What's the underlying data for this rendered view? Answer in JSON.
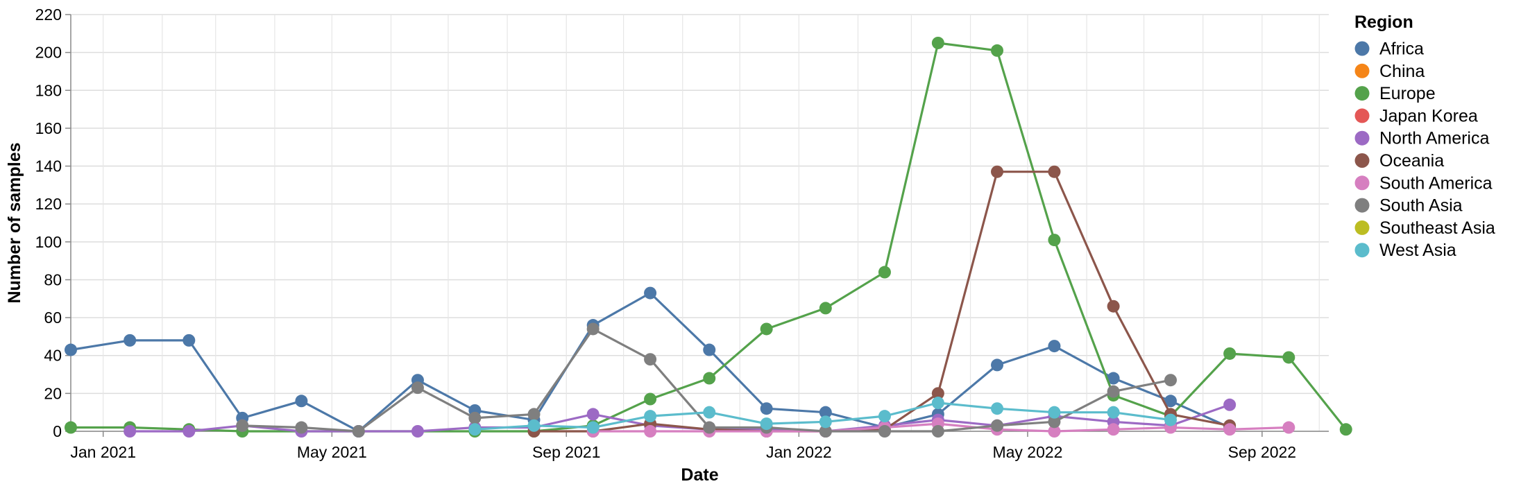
{
  "chart_data": {
    "type": "line",
    "xlabel": "Date",
    "ylabel": "Number of samples",
    "ylim": [
      0,
      220
    ],
    "xlim": [
      "2020-12-15",
      "2022-10-06"
    ],
    "y_ticks": [
      0,
      20,
      40,
      60,
      80,
      100,
      120,
      140,
      160,
      180,
      200,
      220
    ],
    "x_ticks": [
      {
        "label": "Jan 2021",
        "date": "2021-01-01"
      },
      {
        "label": "May 2021",
        "date": "2021-05-01"
      },
      {
        "label": "Sep 2021",
        "date": "2021-09-01"
      },
      {
        "label": "Jan 2022",
        "date": "2022-01-01"
      },
      {
        "label": "May 2022",
        "date": "2022-05-01"
      },
      {
        "label": "Sep 2022",
        "date": "2022-09-01"
      }
    ],
    "grid": true,
    "legend": {
      "title": "Region",
      "position": "right"
    },
    "series": [
      {
        "name": "Africa",
        "color": "#4c78a8",
        "points": [
          [
            "2020-12-15",
            43
          ],
          [
            "2021-01-15",
            48
          ],
          [
            "2021-02-15",
            48
          ],
          [
            "2021-03-15",
            7
          ],
          [
            "2021-04-15",
            16
          ],
          [
            "2021-05-15",
            0
          ],
          [
            "2021-06-15",
            27
          ],
          [
            "2021-07-15",
            11
          ],
          [
            "2021-08-15",
            6
          ],
          [
            "2021-09-15",
            56
          ],
          [
            "2021-10-15",
            73
          ],
          [
            "2021-11-15",
            43
          ],
          [
            "2021-12-15",
            12
          ],
          [
            "2022-01-15",
            10
          ],
          [
            "2022-02-15",
            2
          ],
          [
            "2022-03-15",
            9
          ],
          [
            "2022-04-15",
            35
          ],
          [
            "2022-05-15",
            45
          ],
          [
            "2022-06-15",
            28
          ],
          [
            "2022-07-15",
            16
          ],
          [
            "2022-08-15",
            2
          ]
        ]
      },
      {
        "name": "China",
        "color": "#f58518",
        "points": []
      },
      {
        "name": "Europe",
        "color": "#54a24b",
        "points": [
          [
            "2020-12-15",
            2
          ],
          [
            "2021-01-15",
            2
          ],
          [
            "2021-02-15",
            1
          ],
          [
            "2021-03-15",
            0
          ],
          [
            "2021-07-15",
            0
          ],
          [
            "2021-08-15",
            0
          ],
          [
            "2021-09-15",
            3
          ],
          [
            "2021-10-15",
            17
          ],
          [
            "2021-11-15",
            28
          ],
          [
            "2021-12-15",
            54
          ],
          [
            "2022-01-15",
            65
          ],
          [
            "2022-02-15",
            84
          ],
          [
            "2022-03-15",
            205
          ],
          [
            "2022-04-15",
            201
          ],
          [
            "2022-05-15",
            101
          ],
          [
            "2022-06-15",
            19
          ],
          [
            "2022-07-15",
            8
          ],
          [
            "2022-08-15",
            41
          ],
          [
            "2022-09-15",
            39
          ],
          [
            "2022-10-15",
            1
          ]
        ]
      },
      {
        "name": "Japan Korea",
        "color": "#e45756",
        "points": []
      },
      {
        "name": "North America",
        "color": "#9c6ac4",
        "points": [
          [
            "2021-01-15",
            0
          ],
          [
            "2021-02-15",
            0
          ],
          [
            "2021-03-15",
            3
          ],
          [
            "2021-04-15",
            0
          ],
          [
            "2021-05-15",
            0
          ],
          [
            "2021-06-15",
            0
          ],
          [
            "2021-07-15",
            2
          ],
          [
            "2021-08-15",
            2
          ],
          [
            "2021-09-15",
            9
          ],
          [
            "2021-10-15",
            3
          ],
          [
            "2021-11-15",
            1
          ],
          [
            "2021-12-15",
            1
          ],
          [
            "2022-01-15",
            0
          ],
          [
            "2022-02-15",
            3
          ],
          [
            "2022-03-15",
            6
          ],
          [
            "2022-04-15",
            3
          ],
          [
            "2022-05-15",
            8
          ],
          [
            "2022-06-15",
            5
          ],
          [
            "2022-07-15",
            3
          ],
          [
            "2022-08-15",
            14
          ]
        ]
      },
      {
        "name": "Oceania",
        "color": "#8c564b",
        "points": [
          [
            "2021-08-15",
            0
          ],
          [
            "2021-09-15",
            0
          ],
          [
            "2021-10-15",
            4
          ],
          [
            "2021-11-15",
            1
          ],
          [
            "2021-12-15",
            0
          ],
          [
            "2022-01-15",
            0
          ],
          [
            "2022-02-15",
            1
          ],
          [
            "2022-03-15",
            20
          ],
          [
            "2022-04-15",
            137
          ],
          [
            "2022-05-15",
            137
          ],
          [
            "2022-06-15",
            66
          ],
          [
            "2022-07-15",
            9
          ],
          [
            "2022-08-15",
            3
          ]
        ]
      },
      {
        "name": "South America",
        "color": "#d67fc0",
        "points": [
          [
            "2021-09-15",
            0
          ],
          [
            "2021-10-15",
            0
          ],
          [
            "2021-11-15",
            0
          ],
          [
            "2021-12-15",
            0
          ],
          [
            "2022-01-15",
            0
          ],
          [
            "2022-02-15",
            2
          ],
          [
            "2022-03-15",
            4
          ],
          [
            "2022-04-15",
            1
          ],
          [
            "2022-05-15",
            0
          ],
          [
            "2022-06-15",
            1
          ],
          [
            "2022-07-15",
            2
          ],
          [
            "2022-08-15",
            1
          ],
          [
            "2022-09-15",
            2
          ]
        ]
      },
      {
        "name": "South Asia",
        "color": "#7f7f7f",
        "points": [
          [
            "2021-03-15",
            3
          ],
          [
            "2021-04-15",
            2
          ],
          [
            "2021-05-15",
            0
          ],
          [
            "2021-06-15",
            23
          ],
          [
            "2021-07-15",
            7
          ],
          [
            "2021-08-15",
            9
          ],
          [
            "2021-09-15",
            54
          ],
          [
            "2021-10-15",
            38
          ],
          [
            "2021-11-15",
            2
          ],
          [
            "2021-12-15",
            2
          ],
          [
            "2022-01-15",
            0
          ],
          [
            "2022-02-15",
            0
          ],
          [
            "2022-03-15",
            0
          ],
          [
            "2022-04-15",
            3
          ],
          [
            "2022-05-15",
            5
          ],
          [
            "2022-06-15",
            21
          ],
          [
            "2022-07-15",
            27
          ]
        ]
      },
      {
        "name": "Southeast Asia",
        "color": "#bcbd22",
        "points": []
      },
      {
        "name": "West Asia",
        "color": "#5bbccc",
        "points": [
          [
            "2021-07-15",
            1
          ],
          [
            "2021-08-15",
            3
          ],
          [
            "2021-09-15",
            2
          ],
          [
            "2021-10-15",
            8
          ],
          [
            "2021-11-15",
            10
          ],
          [
            "2021-12-15",
            4
          ],
          [
            "2022-01-15",
            5
          ],
          [
            "2022-02-15",
            8
          ],
          [
            "2022-03-15",
            15
          ],
          [
            "2022-04-15",
            12
          ],
          [
            "2022-05-15",
            10
          ],
          [
            "2022-06-15",
            10
          ],
          [
            "2022-07-15",
            6
          ]
        ]
      }
    ]
  }
}
